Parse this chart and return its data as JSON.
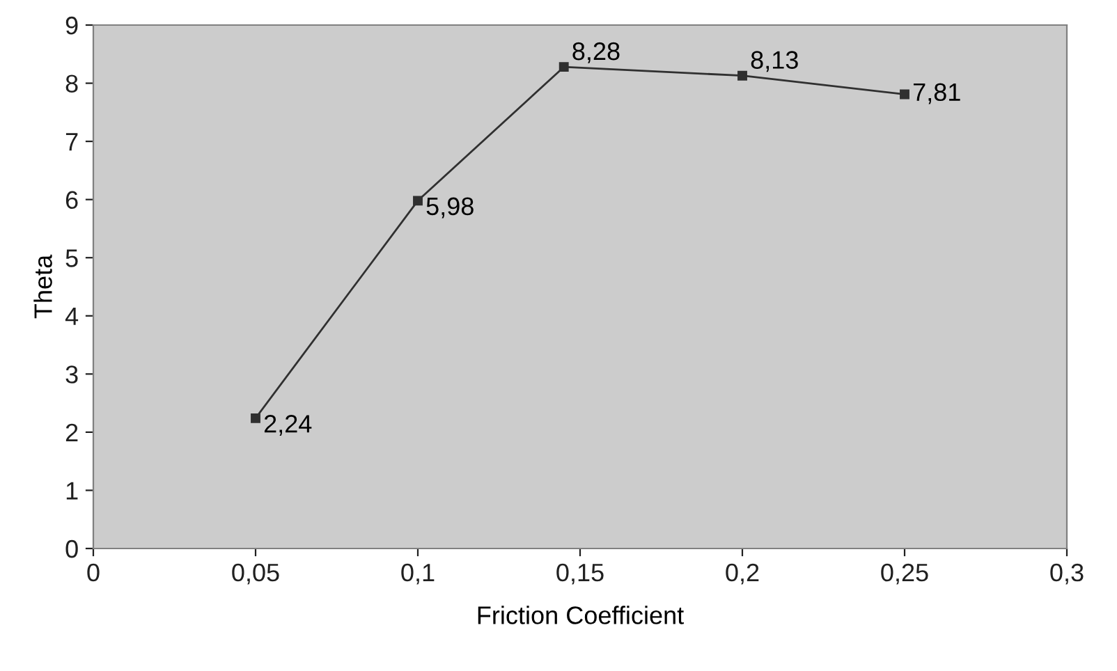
{
  "chart_data": {
    "type": "line",
    "xlabel": "Friction Coefficient",
    "ylabel": "Theta",
    "x": [
      0.05,
      0.1,
      0.145,
      0.2,
      0.25
    ],
    "series": [
      {
        "color": "#303030",
        "values": [
          2.24,
          5.98,
          8.28,
          8.13,
          7.81
        ],
        "value_labels": [
          "2,24",
          "5,98",
          "8,28",
          "8,13",
          "7,81"
        ]
      }
    ],
    "marker": "square",
    "line_style": "solid",
    "grid": false,
    "legend": false,
    "xlim": [
      0,
      0.3
    ],
    "xticks": [
      {
        "value": 0,
        "label": "0"
      },
      {
        "value": 0.05,
        "label": "0,05"
      },
      {
        "value": 0.1,
        "label": "0,1"
      },
      {
        "value": 0.15,
        "label": "0,15"
      },
      {
        "value": 0.2,
        "label": "0,2"
      },
      {
        "value": 0.25,
        "label": "0,25"
      },
      {
        "value": 0.3,
        "label": "0,3"
      }
    ],
    "ylim": [
      0,
      9
    ],
    "yticks": [
      0,
      1,
      2,
      3,
      4,
      5,
      6,
      7,
      8,
      9
    ]
  }
}
